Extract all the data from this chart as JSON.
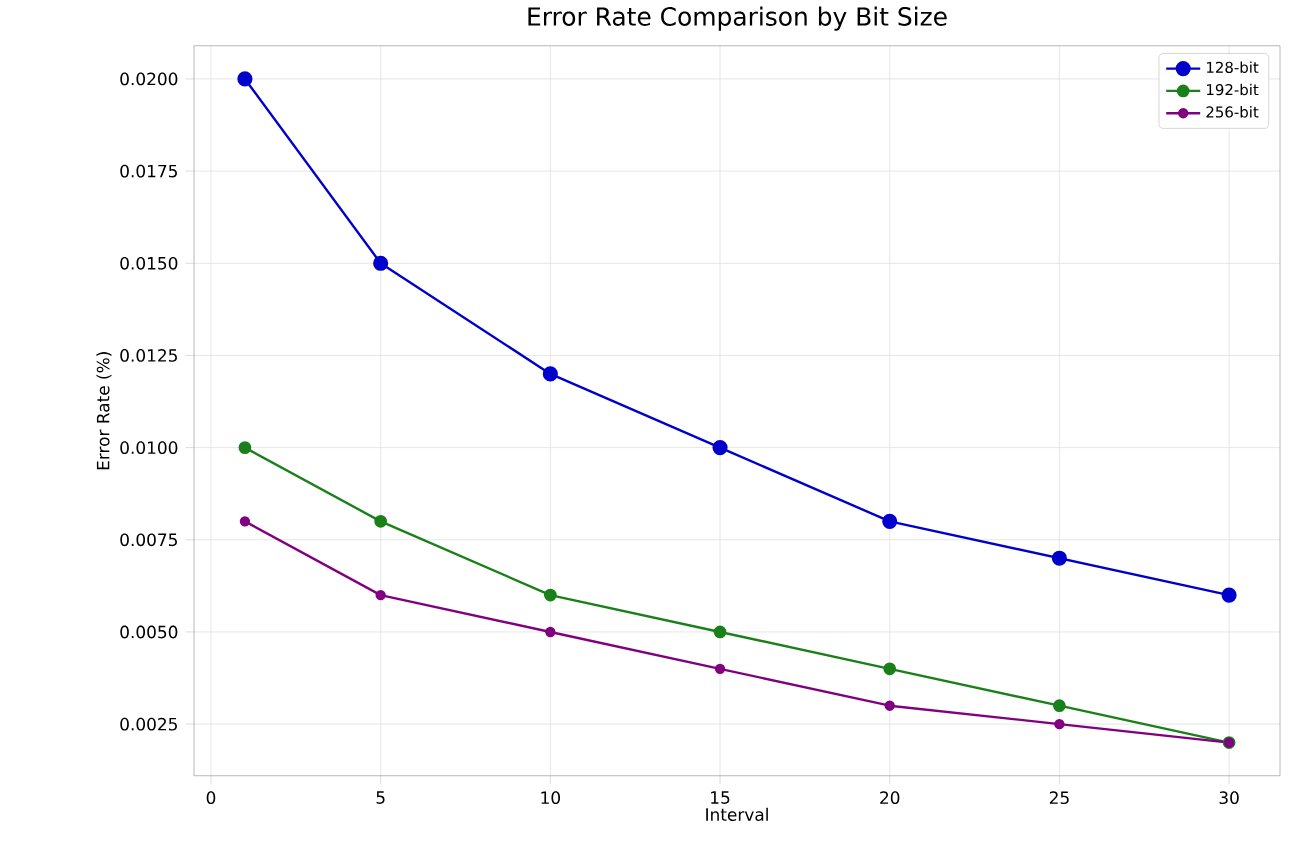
{
  "chart_data": {
    "type": "line",
    "title": "Error Rate Comparison by Bit Size",
    "xlabel": "Interval",
    "ylabel": "Error Rate (%)",
    "x": [
      1,
      5,
      10,
      15,
      20,
      25,
      30
    ],
    "series": [
      {
        "name": "128-bit",
        "color": "#0000cc",
        "values": [
          0.02,
          0.015,
          0.012,
          0.01,
          0.008,
          0.007,
          0.006
        ]
      },
      {
        "name": "192-bit",
        "color": "#1a801a",
        "values": [
          0.01,
          0.008,
          0.006,
          0.005,
          0.004,
          0.003,
          0.002
        ]
      },
      {
        "name": "256-bit",
        "color": "#800080",
        "values": [
          0.008,
          0.006,
          0.005,
          0.004,
          0.003,
          0.0025,
          0.002
        ]
      }
    ],
    "xlim": [
      -0.5,
      31.5
    ],
    "ylim": [
      0.0011,
      0.0209
    ],
    "xticks": [
      0,
      5,
      10,
      15,
      20,
      25,
      30
    ],
    "yticks": [
      0.0025,
      {
        "value": 0.005,
        "label": "0.0050"
      },
      {
        "value": 0.0075,
        "label": "0.0075"
      },
      {
        "value": 0.01,
        "label": "0.0100"
      },
      {
        "value": 0.0125,
        "label": "0.0125"
      },
      {
        "value": 0.015,
        "label": "0.0150"
      },
      {
        "value": 0.0175,
        "label": "0.0175"
      },
      {
        "value": 0.02,
        "label": "0.0200"
      }
    ],
    "grid": true,
    "legend": "top right",
    "marker": "circle",
    "line_style": "solid"
  }
}
